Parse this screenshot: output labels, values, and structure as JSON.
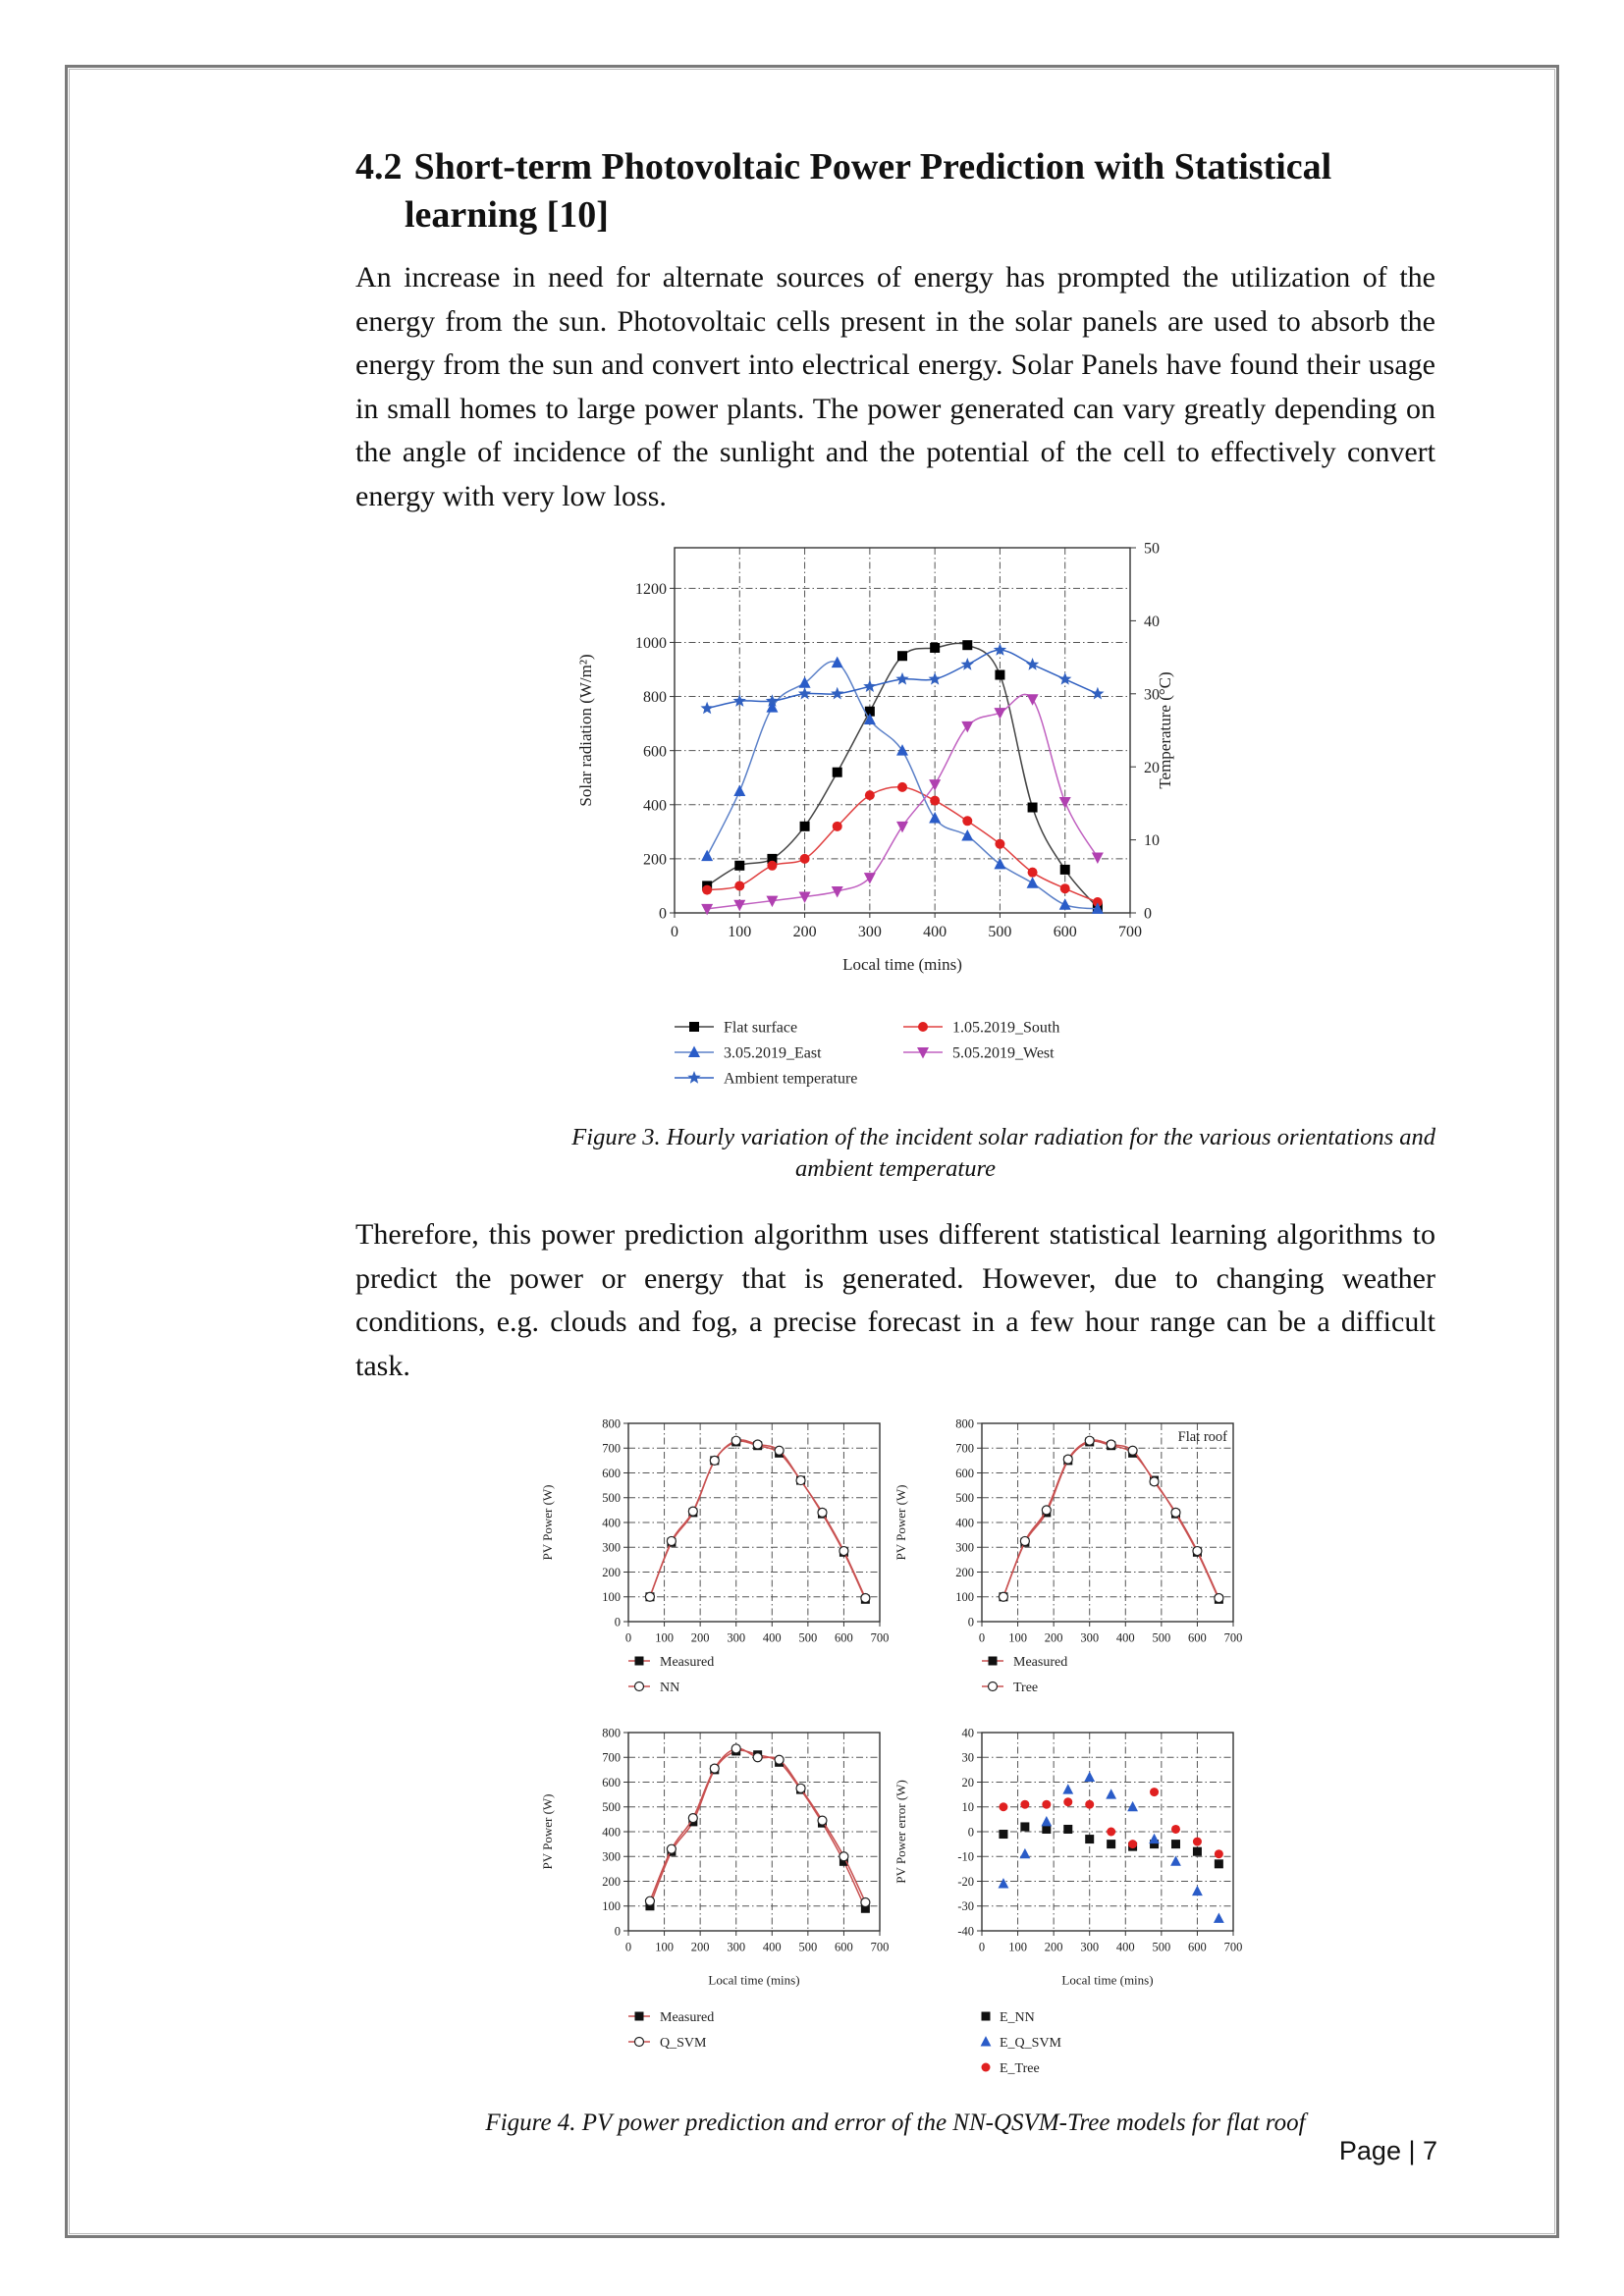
{
  "section": {
    "number": "4.2",
    "title_line1": "Short-term Photovoltaic Power Prediction with Statistical",
    "title_line2": "learning [10]"
  },
  "paragraph1": "An increase in need for alternate sources of energy has prompted the utilization of the energy from the sun. Photovoltaic cells present in the solar panels are used to absorb the energy from the sun and convert into electrical energy. Solar Panels have found their usage in small homes to large power plants. The power generated can vary greatly depending on the angle of incidence of the sunlight and the potential of the cell to effectively convert energy with very low loss.",
  "figure3": {
    "caption_line1": "Figure 3. Hourly variation of the incident solar radiation for the various orientations and",
    "caption_line2": "ambient temperature"
  },
  "paragraph2": "Therefore, this power prediction algorithm uses different statistical learning algorithms to predict the power or energy that is generated. However, due to changing weather conditions, e.g. clouds and fog, a precise forecast in a few hour range can be a difficult task.",
  "figure4": {
    "caption": "Figure 4. PV power prediction and error of the NN-QSVM-Tree models for flat roof"
  },
  "footer": {
    "page_label": "Page | 7"
  },
  "chart_data": [
    {
      "type": "line",
      "xlabel": "Local time (mins)",
      "ylabel": "Solar radiation (W/m²)",
      "y2label": "Temperature (°C)",
      "xlim": [
        0,
        700
      ],
      "ylim": [
        0,
        1350
      ],
      "y2lim": [
        0,
        50
      ],
      "xticks": [
        0,
        100,
        200,
        300,
        400,
        500,
        600,
        700
      ],
      "yticks": [
        0,
        200,
        400,
        600,
        800,
        1000,
        1200
      ],
      "y2ticks": [
        0,
        10,
        20,
        30,
        40,
        50
      ],
      "grid": true,
      "legend_position": "bottom",
      "series": [
        {
          "name": "Flat surface",
          "axis": "left",
          "color": "#000000",
          "marker": "square",
          "x": [
            50,
            100,
            150,
            200,
            250,
            300,
            350,
            400,
            450,
            500,
            550,
            600,
            650
          ],
          "y": [
            100,
            175,
            200,
            320,
            520,
            745,
            950,
            980,
            990,
            880,
            390,
            160,
            20
          ]
        },
        {
          "name": "1.05.2019_South",
          "axis": "left",
          "color": "#e02020",
          "marker": "circle",
          "x": [
            50,
            100,
            150,
            200,
            250,
            300,
            350,
            400,
            450,
            500,
            550,
            600,
            650
          ],
          "y": [
            85,
            100,
            175,
            200,
            320,
            435,
            465,
            415,
            340,
            255,
            150,
            90,
            40
          ]
        },
        {
          "name": "3.05.2019_East",
          "axis": "left",
          "color": "#2a5cc8",
          "marker": "triangle-up",
          "x": [
            50,
            100,
            150,
            200,
            250,
            300,
            350,
            400,
            450,
            500,
            550,
            600,
            650
          ],
          "y": [
            210,
            450,
            760,
            850,
            925,
            715,
            600,
            350,
            285,
            180,
            110,
            30,
            15
          ]
        },
        {
          "name": "5.05.2019_West",
          "axis": "left",
          "color": "#b040b0",
          "marker": "triangle-down",
          "x": [
            50,
            100,
            150,
            200,
            250,
            300,
            350,
            400,
            450,
            500,
            550,
            600,
            650
          ],
          "y": [
            15,
            30,
            45,
            60,
            80,
            130,
            320,
            475,
            690,
            740,
            790,
            410,
            205
          ]
        },
        {
          "name": "Ambient temperature",
          "axis": "right",
          "color": "#3060c0",
          "marker": "star",
          "x": [
            50,
            100,
            150,
            200,
            250,
            300,
            350,
            400,
            450,
            500,
            550,
            600,
            650
          ],
          "y": [
            28,
            29,
            29,
            30,
            30,
            31,
            32,
            32,
            34,
            36,
            34,
            32,
            30
          ]
        }
      ]
    },
    {
      "type": "line",
      "ylabel": "PV Power (W)",
      "xlim": [
        0,
        700
      ],
      "ylim": [
        0,
        800
      ],
      "xticks": [
        0,
        100,
        200,
        300,
        400,
        500,
        600,
        700
      ],
      "yticks": [
        0,
        100,
        200,
        300,
        400,
        500,
        600,
        700,
        800
      ],
      "grid": true,
      "legend_position": "bottom",
      "series": [
        {
          "name": "Measured",
          "color": "#111111",
          "marker": "square-filled",
          "x": [
            60,
            120,
            180,
            240,
            300,
            360,
            420,
            480,
            540,
            600,
            660
          ],
          "y": [
            100,
            320,
            440,
            650,
            725,
            710,
            680,
            570,
            435,
            280,
            90
          ]
        },
        {
          "name": "NN",
          "color": "#d04040",
          "marker": "circle-open",
          "x": [
            60,
            120,
            180,
            240,
            300,
            360,
            420,
            480,
            540,
            600,
            660
          ],
          "y": [
            100,
            325,
            445,
            650,
            730,
            715,
            690,
            570,
            440,
            285,
            95
          ]
        }
      ]
    },
    {
      "type": "line",
      "ylabel": "PV Power (W)",
      "annotation": "Flat roof",
      "xlim": [
        0,
        700
      ],
      "ylim": [
        0,
        800
      ],
      "xticks": [
        0,
        100,
        200,
        300,
        400,
        500,
        600,
        700
      ],
      "yticks": [
        0,
        100,
        200,
        300,
        400,
        500,
        600,
        700,
        800
      ],
      "grid": true,
      "legend_position": "bottom",
      "series": [
        {
          "name": "Measured",
          "color": "#111111",
          "marker": "square-filled",
          "x": [
            60,
            120,
            180,
            240,
            300,
            360,
            420,
            480,
            540,
            600,
            660
          ],
          "y": [
            100,
            320,
            440,
            650,
            725,
            710,
            680,
            570,
            435,
            280,
            90
          ]
        },
        {
          "name": "Tree",
          "color": "#d04040",
          "marker": "circle-open",
          "x": [
            60,
            120,
            180,
            240,
            300,
            360,
            420,
            480,
            540,
            600,
            660
          ],
          "y": [
            100,
            325,
            450,
            655,
            730,
            715,
            690,
            565,
            440,
            285,
            95
          ]
        }
      ]
    },
    {
      "type": "line",
      "xlabel": "Local time (mins)",
      "ylabel": "PV Power (W)",
      "xlim": [
        0,
        700
      ],
      "ylim": [
        0,
        800
      ],
      "xticks": [
        0,
        100,
        200,
        300,
        400,
        500,
        600,
        700
      ],
      "yticks": [
        0,
        100,
        200,
        300,
        400,
        500,
        600,
        700,
        800
      ],
      "grid": true,
      "legend_position": "bottom",
      "series": [
        {
          "name": "Measured",
          "color": "#111111",
          "marker": "square-filled",
          "x": [
            60,
            120,
            180,
            240,
            300,
            360,
            420,
            480,
            540,
            600,
            660
          ],
          "y": [
            100,
            320,
            440,
            650,
            725,
            710,
            680,
            570,
            435,
            280,
            90
          ]
        },
        {
          "name": "Q_SVM",
          "color": "#d04040",
          "marker": "circle-open",
          "x": [
            60,
            120,
            180,
            240,
            300,
            360,
            420,
            480,
            540,
            600,
            660
          ],
          "y": [
            120,
            330,
            455,
            655,
            735,
            700,
            690,
            575,
            445,
            300,
            115
          ]
        }
      ]
    },
    {
      "type": "scatter",
      "xlabel": "Local time (mins)",
      "ylabel": "PV Power error (W)",
      "xlim": [
        0,
        700
      ],
      "ylim": [
        -40,
        40
      ],
      "xticks": [
        0,
        100,
        200,
        300,
        400,
        500,
        600,
        700
      ],
      "yticks": [
        -40,
        -30,
        -20,
        -10,
        0,
        10,
        20,
        30,
        40
      ],
      "grid": true,
      "legend_position": "bottom",
      "series": [
        {
          "name": "E_NN",
          "color": "#111111",
          "marker": "square-filled",
          "x": [
            60,
            120,
            180,
            240,
            300,
            360,
            420,
            480,
            540,
            600,
            660
          ],
          "y": [
            -1,
            2,
            1,
            1,
            -3,
            -5,
            -6,
            -5,
            -5,
            -8,
            -13
          ]
        },
        {
          "name": "E_Q_SVM",
          "color": "#2a5cc8",
          "marker": "triangle-up",
          "x": [
            60,
            120,
            180,
            240,
            300,
            360,
            420,
            480,
            540,
            600,
            660
          ],
          "y": [
            -21,
            -9,
            4,
            17,
            22,
            15,
            10,
            -3,
            -12,
            -24,
            -35
          ]
        },
        {
          "name": "E_Tree",
          "color": "#e02020",
          "marker": "circle-filled",
          "x": [
            60,
            120,
            180,
            240,
            300,
            360,
            420,
            480,
            540,
            600,
            660
          ],
          "y": [
            10,
            11,
            11,
            12,
            11,
            0,
            -5,
            16,
            1,
            -4,
            -9
          ]
        }
      ]
    }
  ]
}
